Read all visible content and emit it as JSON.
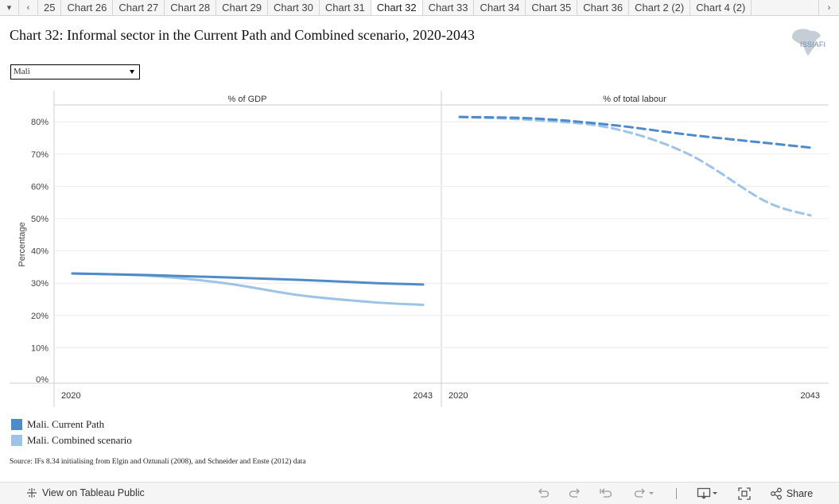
{
  "tabs": {
    "labels": [
      "25",
      "Chart 26",
      "Chart 27",
      "Chart 28",
      "Chart 29",
      "Chart 30",
      "Chart 31",
      "Chart 32",
      "Chart 33",
      "Chart 34",
      "Chart 35",
      "Chart 36",
      "Chart 2 (2)",
      "Chart 4 (2)"
    ],
    "active_index": 7
  },
  "title": "Chart 32: Informal sector in the Current Path and Combined scenario, 2020-2043",
  "logo": {
    "text": "ISS|AFI"
  },
  "filter": {
    "selected": "Mali"
  },
  "chart_data": {
    "type": "line",
    "ylabel": "Percentage",
    "ylim": [
      0,
      85
    ],
    "y_ticks": [
      "0%",
      "10%",
      "20%",
      "30%",
      "40%",
      "50%",
      "60%",
      "70%",
      "80%"
    ],
    "grid": true,
    "legend_position": "bottom-left",
    "panels": [
      {
        "name": "% of GDP",
        "x_ticks": [
          "2020",
          "2043"
        ],
        "x": [
          2020,
          2025,
          2030,
          2035,
          2040,
          2043
        ],
        "series": [
          {
            "name": "Mali. Current Path",
            "values": [
              33.0,
              32.5,
              31.8,
              31.0,
              30.0,
              29.6
            ]
          },
          {
            "name": "Mali. Combined scenario",
            "values": [
              33.0,
              32.3,
              30.0,
              26.2,
              24.0,
              23.3
            ]
          }
        ]
      },
      {
        "name": "% of total labour",
        "x_ticks": [
          "2020",
          "2043"
        ],
        "x": [
          2020,
          2025,
          2030,
          2035,
          2040,
          2043
        ],
        "series": [
          {
            "name": "Mali. Current Path",
            "values": [
              81.5,
              81.0,
              79.0,
              76.0,
              73.5,
              72.0
            ]
          },
          {
            "name": "Mali. Combined scenario",
            "values": [
              81.5,
              80.5,
              78.0,
              70.0,
              55.5,
              51.0
            ]
          }
        ]
      }
    ]
  },
  "legend": [
    {
      "label": "Mali. Current Path",
      "color": "#4f8bc9"
    },
    {
      "label": "Mali. Combined scenario",
      "color": "#9dc3e6"
    }
  ],
  "source": "Source: IFs 8.34 initialising from Elgin and Oztunali (2008), and Schneider and Enste (2012) data",
  "footer": {
    "view_link": "View on Tableau Public",
    "share_label": "Share",
    "icons": [
      "undo-icon",
      "redo-icon",
      "revert-icon",
      "refresh-icon",
      "download-icon",
      "fullscreen-icon",
      "share-icon"
    ]
  }
}
